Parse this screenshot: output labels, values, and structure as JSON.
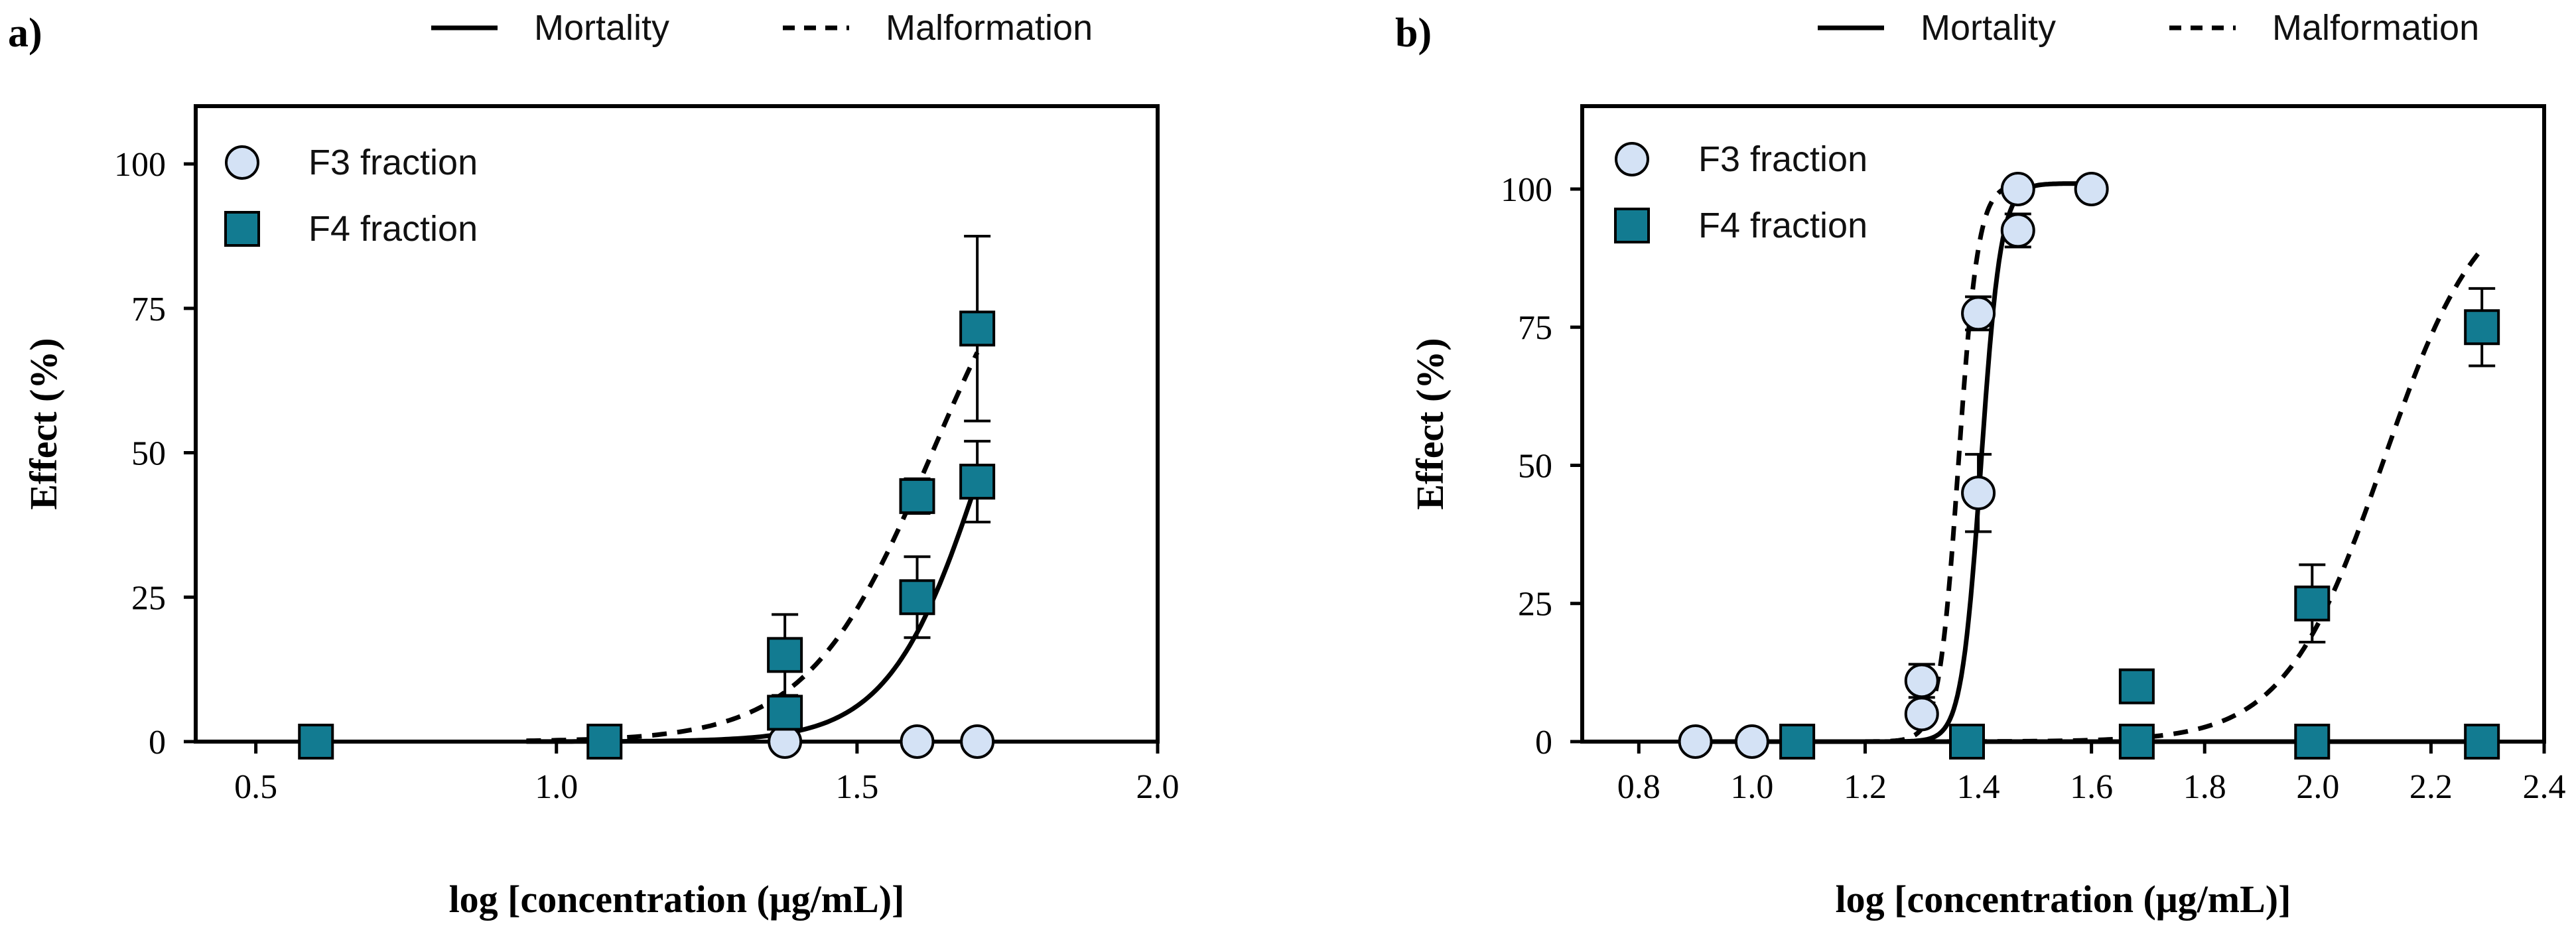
{
  "chart_data": [
    {
      "type": "scatter",
      "panel_label": "a)",
      "xlabel": "log [concentration (μg/mL)]",
      "ylabel": "Effect (%)",
      "xlim": [
        0.4,
        2.0
      ],
      "ylim": [
        0,
        110
      ],
      "xticks": [
        0.5,
        1.0,
        1.5,
        2.0
      ],
      "yticks": [
        0,
        25,
        50,
        75,
        100
      ],
      "xtick_labels": [
        "0.5",
        "1.0",
        "1.5",
        "2.0"
      ],
      "ytick_labels": [
        "0",
        "25",
        "50",
        "75",
        "100"
      ],
      "line_legend": [
        {
          "label": "Mortality",
          "style": "solid"
        },
        {
          "label": "Malformation",
          "style": "dashed"
        }
      ],
      "marker_legend": [
        {
          "label": "F3 fraction",
          "marker": "circle"
        },
        {
          "label": "F4 fraction",
          "marker": "square"
        }
      ],
      "series": [
        {
          "name": "F3 fraction – mortality",
          "marker": "circle",
          "x": [
            0.6,
            1.08,
            1.38,
            1.6,
            1.7
          ],
          "y": [
            0,
            0,
            0,
            0,
            0
          ],
          "error": [
            0,
            0,
            0,
            0,
            0
          ]
        },
        {
          "name": "F4 fraction – mortality",
          "marker": "square",
          "x": [
            0.6,
            1.08,
            1.38,
            1.6,
            1.7
          ],
          "y": [
            0,
            0,
            5,
            25,
            45
          ],
          "error": [
            0,
            0,
            0,
            7,
            7
          ]
        },
        {
          "name": "F4 fraction – malformation",
          "marker": "square",
          "x": [
            1.38,
            1.6,
            1.7
          ],
          "y": [
            15,
            42.5,
            71.5
          ],
          "error": [
            7,
            3,
            16
          ]
        }
      ],
      "fit_curves": [
        {
          "name": "F4 mortality fit",
          "style": "solid",
          "x_range": [
            0.95,
            1.7
          ],
          "ec50": 1.715,
          "hill": 5.5
        },
        {
          "name": "F4 malformation fit",
          "style": "dashed",
          "x_range": [
            0.95,
            1.7
          ],
          "ec50": 1.625,
          "hill": 4.2
        }
      ]
    },
    {
      "type": "scatter",
      "panel_label": "b)",
      "xlabel": "log [concentration (μg/mL)]",
      "ylabel": "Effect (%)",
      "xlim": [
        0.7,
        2.4
      ],
      "ylim": [
        0,
        115
      ],
      "xticks": [
        0.8,
        1.0,
        1.2,
        1.4,
        1.6,
        1.8,
        2.0,
        2.2,
        2.4
      ],
      "yticks": [
        0,
        25,
        50,
        75,
        100
      ],
      "xtick_labels": [
        "0.8",
        "1.0",
        "1.2",
        "1.4",
        "1.6",
        "1.8",
        "2.0",
        "2.2",
        "2.4"
      ],
      "ytick_labels": [
        "0",
        "25",
        "50",
        "75",
        "100"
      ],
      "line_legend": [
        {
          "label": "Mortality",
          "style": "solid"
        },
        {
          "label": "Malformation",
          "style": "dashed"
        }
      ],
      "marker_legend": [
        {
          "label": "F3 fraction",
          "marker": "circle"
        },
        {
          "label": "F4 fraction",
          "marker": "square"
        }
      ],
      "series": [
        {
          "name": "F3 fraction – mortality",
          "marker": "circle",
          "x": [
            0.9,
            1.0,
            1.3,
            1.4,
            1.47,
            1.6
          ],
          "y": [
            0,
            0,
            5,
            45,
            92.5,
            100
          ],
          "error": [
            0,
            0,
            0,
            7,
            3,
            0
          ]
        },
        {
          "name": "F3 fraction – malformation",
          "marker": "circle",
          "x": [
            1.3,
            1.4,
            1.47
          ],
          "y": [
            11,
            77.5,
            100
          ],
          "error": [
            3,
            3,
            0
          ]
        },
        {
          "name": "F4 fraction – mortality",
          "marker": "square",
          "x": [
            1.08,
            1.38,
            1.68,
            1.99,
            2.29
          ],
          "y": [
            0,
            0,
            0,
            0,
            0
          ],
          "error": [
            0,
            0,
            0,
            0,
            0
          ]
        },
        {
          "name": "F4 fraction – malformation",
          "marker": "square",
          "x": [
            1.68,
            1.99,
            2.29
          ],
          "y": [
            10,
            25,
            75
          ],
          "error": [
            0,
            7,
            7
          ]
        }
      ],
      "fit_curves": [
        {
          "name": "F3 mortality fit",
          "style": "solid",
          "x_range": [
            1.2,
            1.6
          ],
          "ec50": 1.405,
          "hill": 25,
          "top": 101
        },
        {
          "name": "F3 malformation fit",
          "style": "dashed",
          "x_range": [
            1.2,
            1.47
          ],
          "ec50": 1.365,
          "hill": 25,
          "top": 101
        },
        {
          "name": "F4 malformation fit",
          "style": "dashed",
          "x_range": [
            1.3,
            2.29
          ],
          "ec50": 2.115,
          "hill": 5,
          "top": 101
        }
      ],
      "flat_lines": [
        {
          "name": "F3 baseline",
          "style": "solid",
          "x_range": [
            0.9,
            1.22
          ],
          "y": 0
        },
        {
          "name": "F4 mortality baseline",
          "style": "solid",
          "x_range": [
            1.08,
            2.29
          ],
          "y": 0
        }
      ]
    }
  ]
}
